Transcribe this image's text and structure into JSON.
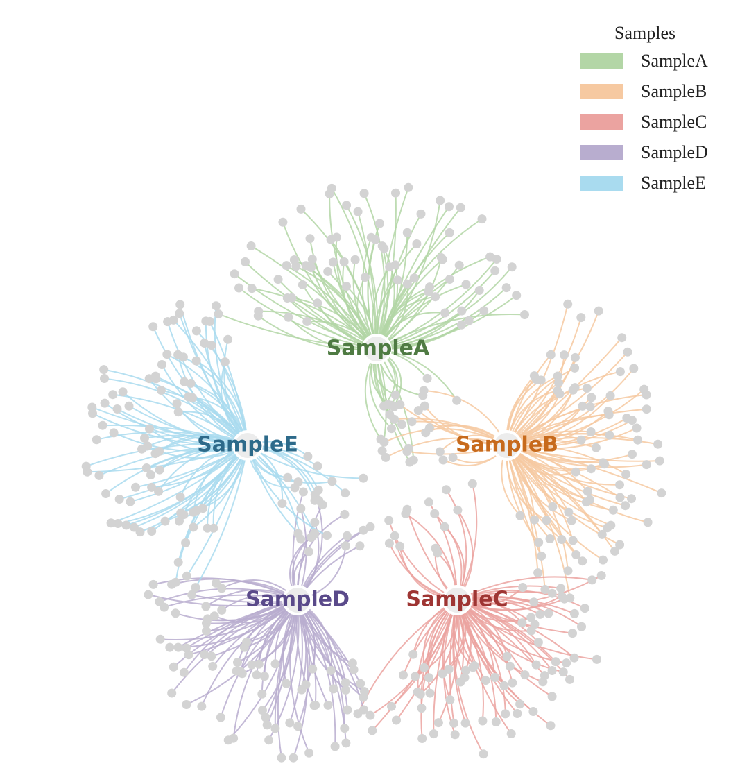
{
  "legend": {
    "title": "Samples",
    "items": [
      {
        "label": "SampleA",
        "color": "#b3d6a6"
      },
      {
        "label": "SampleB",
        "color": "#f6c9a1"
      },
      {
        "label": "SampleC",
        "color": "#eba3a0"
      },
      {
        "label": "SampleD",
        "color": "#b8adcf"
      },
      {
        "label": "SampleE",
        "color": "#a9dbef"
      }
    ]
  },
  "hubs": [
    {
      "label": "SampleA",
      "line_color": "#b3d6a6",
      "text_color": "#4f7b43"
    },
    {
      "label": "SampleB",
      "line_color": "#f6c9a1",
      "text_color": "#c76a1c"
    },
    {
      "label": "SampleC",
      "line_color": "#eba3a0",
      "text_color": "#9e3533"
    },
    {
      "label": "SampleD",
      "line_color": "#b8adcf",
      "text_color": "#5a4a8a"
    },
    {
      "label": "SampleE",
      "line_color": "#a9dbef",
      "text_color": "#2d6a8a"
    }
  ],
  "node_color": "#d3d3d3"
}
